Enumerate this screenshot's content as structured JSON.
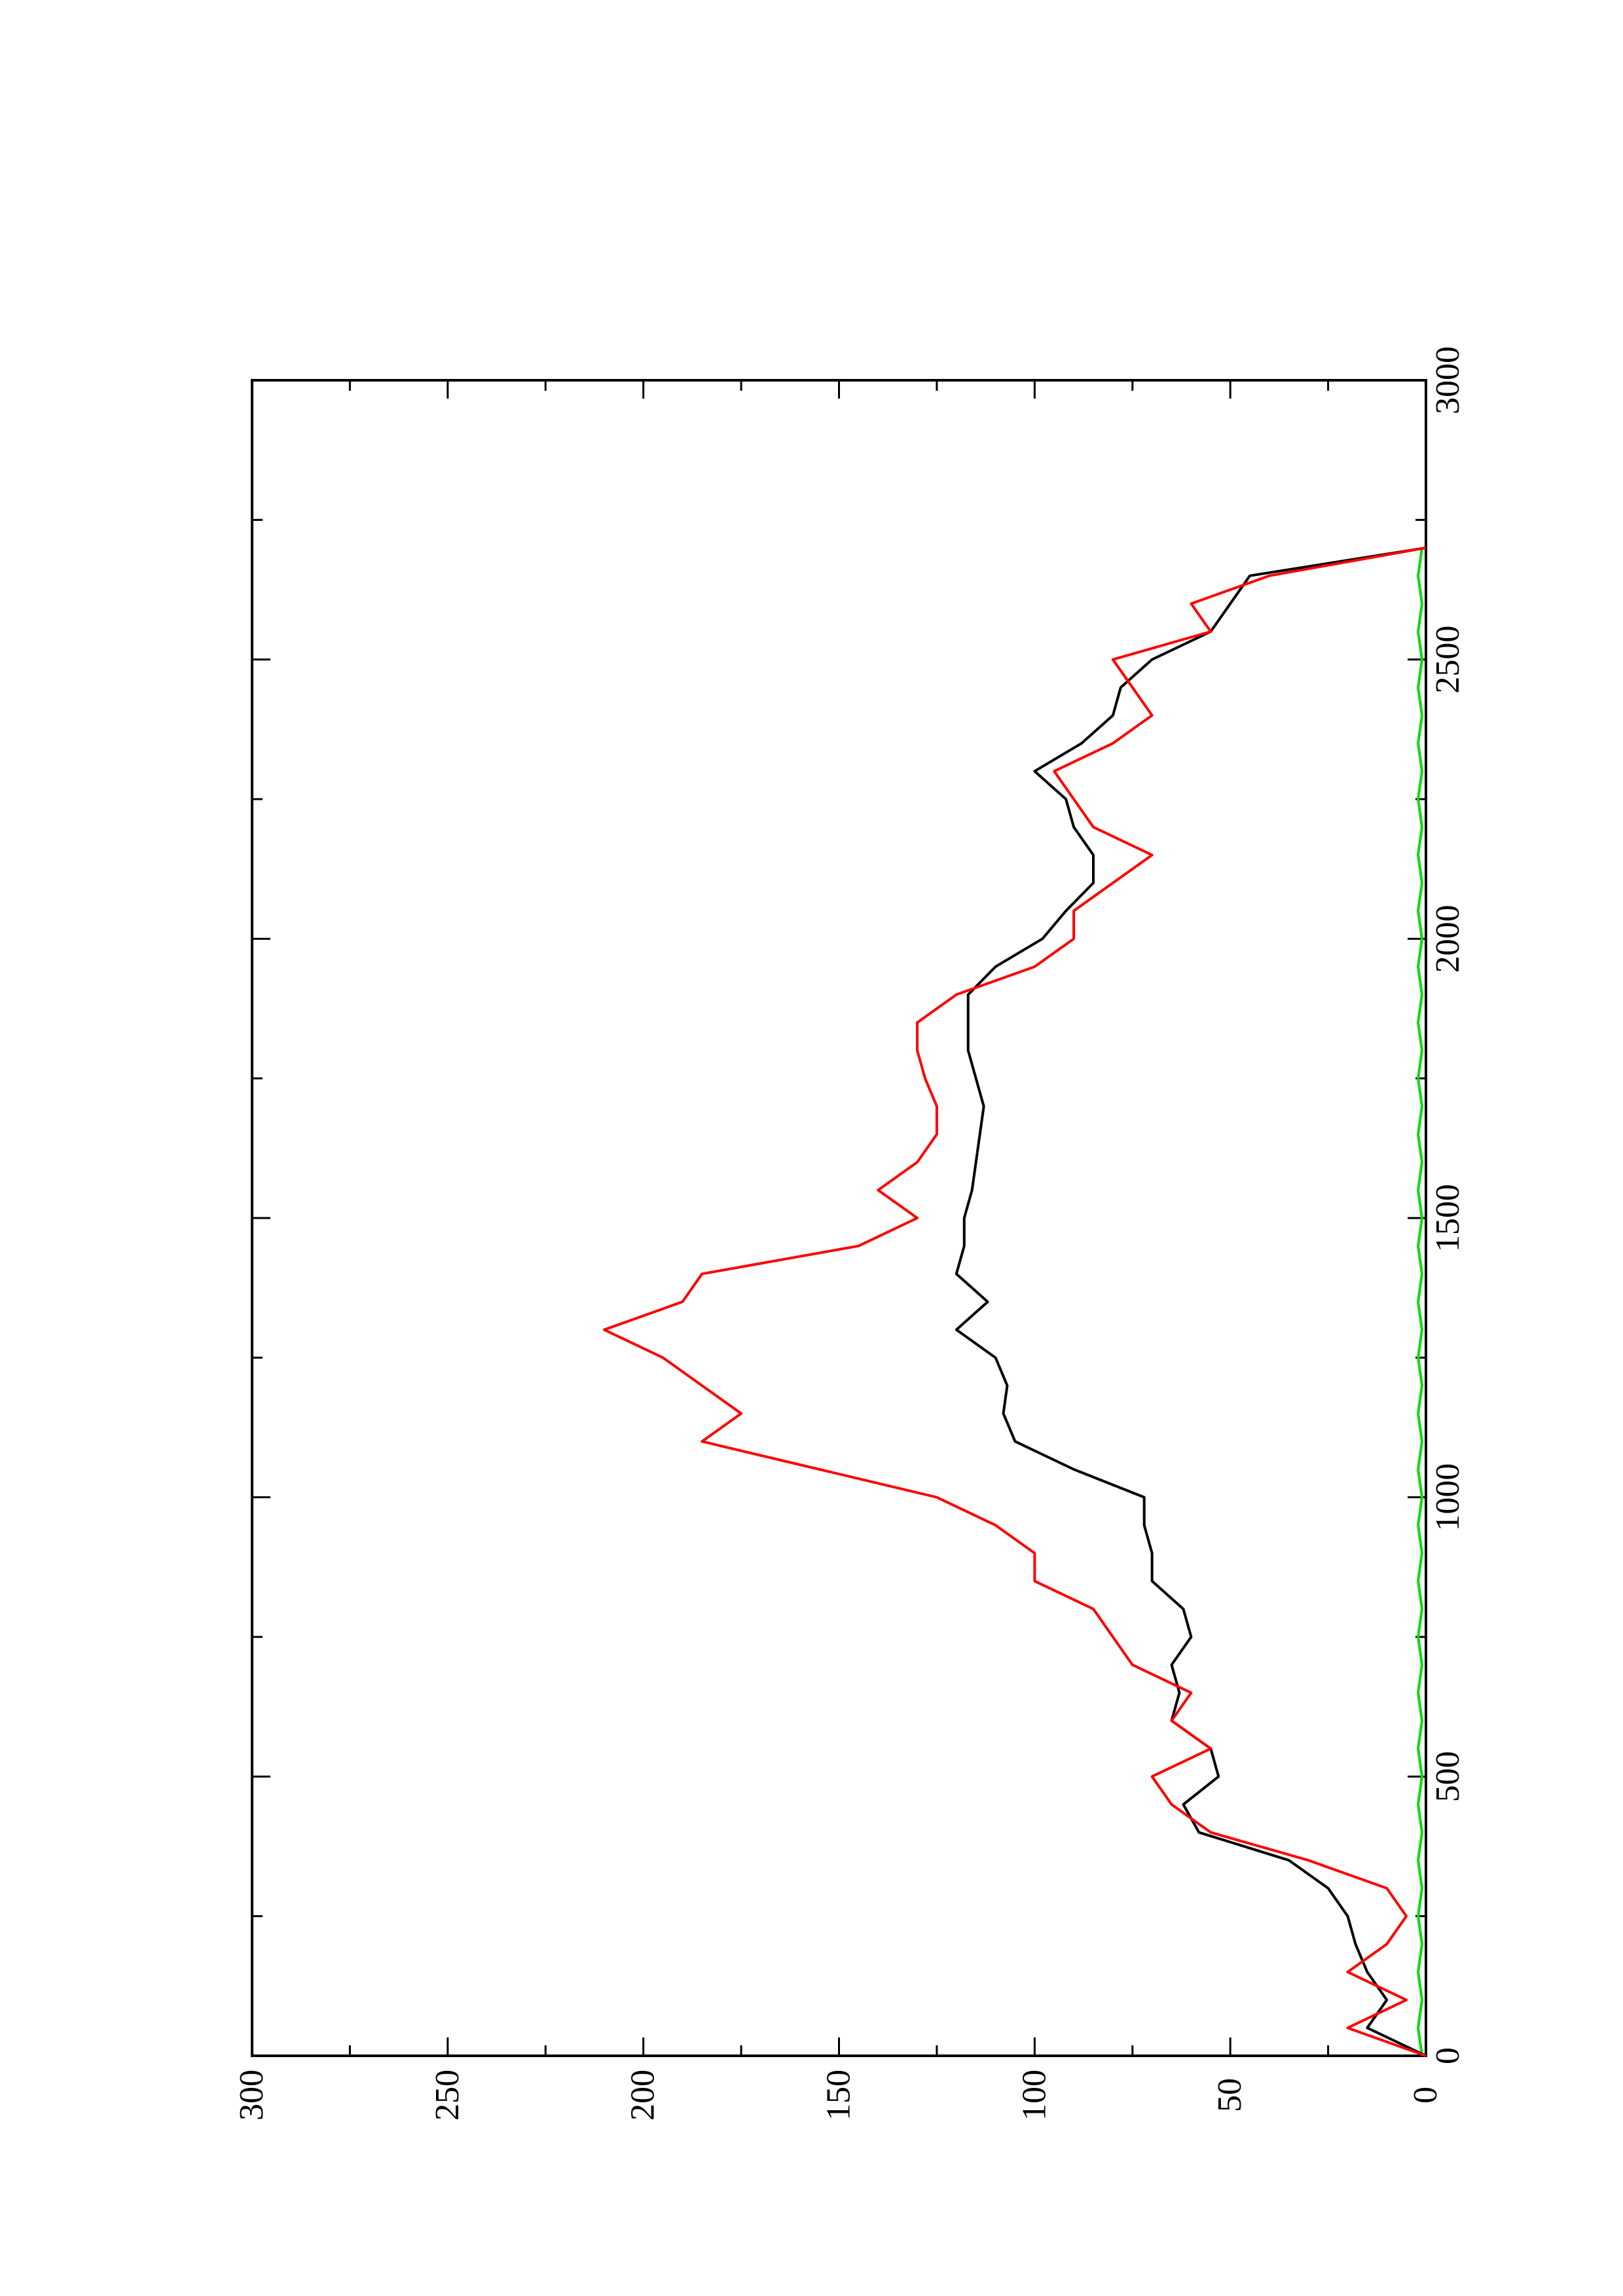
{
  "chart_data": {
    "type": "line",
    "x": [
      0,
      50,
      100,
      150,
      200,
      250,
      300,
      350,
      400,
      450,
      500,
      550,
      600,
      650,
      700,
      750,
      800,
      850,
      900,
      950,
      1000,
      1050,
      1100,
      1150,
      1200,
      1250,
      1300,
      1350,
      1400,
      1450,
      1500,
      1550,
      1600,
      1650,
      1700,
      1750,
      1800,
      1850,
      1900,
      1950,
      2000,
      2050,
      2100,
      2150,
      2200,
      2250,
      2300,
      2350,
      2400,
      2450,
      2500,
      2550,
      2600,
      2650,
      2700
    ],
    "series": [
      {
        "color": "#000000",
        "values": [
          0,
          15,
          10,
          15,
          18,
          20,
          25,
          35,
          58,
          62,
          53,
          55,
          65,
          63,
          65,
          60,
          62,
          70,
          70,
          72,
          72,
          90,
          105,
          108,
          107,
          110,
          120,
          112,
          120,
          118,
          118,
          116,
          115,
          114,
          113,
          115,
          117,
          117,
          117,
          110,
          98,
          92,
          85,
          85,
          90,
          92,
          100,
          88,
          80,
          78,
          70,
          55,
          50,
          45,
          0
        ]
      },
      {
        "color": "#ff0000",
        "values": [
          0,
          20,
          5,
          20,
          10,
          5,
          10,
          30,
          55,
          65,
          70,
          55,
          65,
          60,
          75,
          80,
          85,
          100,
          100,
          110,
          125,
          155,
          185,
          175,
          185,
          195,
          210,
          190,
          185,
          145,
          130,
          140,
          130,
          125,
          125,
          128,
          130,
          130,
          120,
          100,
          90,
          90,
          80,
          70,
          85,
          90,
          95,
          80,
          70,
          75,
          80,
          55,
          60,
          40,
          0
        ]
      },
      {
        "color": "#00dd00",
        "values": [
          1,
          2,
          1,
          2,
          1,
          2,
          1,
          2,
          1,
          2,
          1,
          2,
          1,
          2,
          1,
          2,
          1,
          2,
          1,
          2,
          1,
          2,
          1,
          2,
          1,
          2,
          1,
          2,
          1,
          2,
          1,
          2,
          1,
          2,
          1,
          2,
          1,
          2,
          1,
          2,
          1,
          2,
          1,
          2,
          1,
          2,
          1,
          2,
          1,
          2,
          1,
          2,
          1,
          2,
          1
        ]
      }
    ],
    "xlim": [
      0,
      3000
    ],
    "xticks": [
      0,
      500,
      1000,
      1500,
      2000,
      2500,
      3000
    ],
    "xminorticks": [
      250,
      750,
      1250,
      1750,
      2250,
      2750
    ],
    "ylim": [
      0,
      300
    ],
    "yticks": [
      0,
      50,
      100,
      150,
      200,
      250,
      300
    ],
    "yminorticks": [
      25,
      75,
      125,
      175,
      225,
      275
    ]
  }
}
